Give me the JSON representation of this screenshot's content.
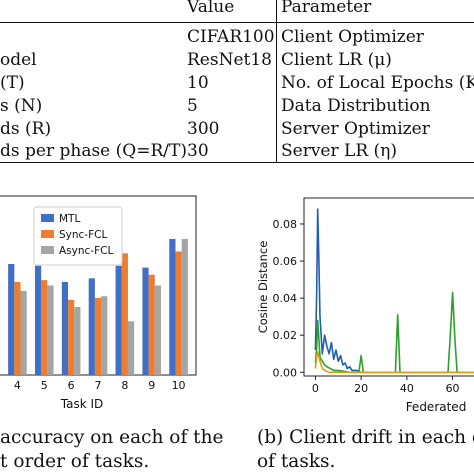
{
  "table": {
    "header": {
      "value": "Value",
      "parameter": "Parameter"
    },
    "rows": [
      {
        "label": "",
        "value": "CIFAR100",
        "parameter": "Client Optimizer"
      },
      {
        "label": "odel",
        "value": "ResNet18",
        "parameter": "Client LR (μ)"
      },
      {
        "label": "(T)",
        "value": "10",
        "parameter": "No. of Local Epochs (K)"
      },
      {
        "label": "s (N)",
        "value": "5",
        "parameter": "Data Distribution"
      },
      {
        "label": "ds (R)",
        "value": "300",
        "parameter": "Server Optimizer"
      },
      {
        "label": "ds per phase (Q=R/T)",
        "value": "30",
        "parameter": "Server LR (η)"
      }
    ]
  },
  "figure_a": {
    "caption_line1": "accuracy on each of the",
    "caption_line2": "t order of tasks.",
    "chart_data": {
      "type": "bar",
      "categories": [
        "4",
        "5",
        "6",
        "7",
        "8",
        "9",
        "10"
      ],
      "xlabel": "Task ID",
      "ylabel": "",
      "ylim": [
        0,
        100
      ],
      "series": [
        {
          "name": "MTL",
          "color": "#3f6fc6",
          "values": [
            62,
            61,
            52,
            54,
            61,
            60,
            76
          ]
        },
        {
          "name": "Sync-FCL",
          "color": "#ed7d31",
          "values": [
            52,
            53,
            42,
            43,
            68,
            56,
            69
          ]
        },
        {
          "name": "Async-FCL",
          "color": "#a5a5a5",
          "values": [
            47,
            50,
            38,
            44,
            30,
            50,
            76
          ]
        }
      ],
      "legend_position": "top-left"
    }
  },
  "figure_b": {
    "caption_line1": "(b) Client drift in each c",
    "caption_line2": "of tasks.",
    "chart_data": {
      "type": "line",
      "ylabel": "Cosine Distance",
      "xlabel": "Federated",
      "xlim": [
        -5,
        72
      ],
      "ylim": [
        -0.002,
        0.094
      ],
      "xticks": [
        "0",
        "20",
        "40",
        "60"
      ],
      "xtick_values": [
        0,
        20,
        40,
        60
      ],
      "yticks": [
        "0.00",
        "0.02",
        "0.04",
        "0.06",
        "0.08"
      ],
      "ytick_values": [
        0,
        0.02,
        0.04,
        0.06,
        0.08
      ],
      "series": [
        {
          "name": "",
          "color": "#1f5fb0",
          "x": [
            0,
            0.5,
            1,
            1.5,
            2,
            3,
            4,
            5,
            6,
            7,
            8,
            9,
            10,
            11,
            12,
            13,
            14,
            15,
            16,
            18,
            20,
            25,
            30,
            40,
            50,
            60,
            70
          ],
          "y": [
            0.012,
            0.04,
            0.088,
            0.06,
            0.03,
            0.01,
            0.02,
            0.014,
            0.01,
            0.016,
            0.007,
            0.012,
            0.006,
            0.009,
            0.004,
            0.005,
            0.002,
            0.003,
            0.001,
            0.001,
            0.0,
            0.0,
            0.0,
            0.0,
            0.0,
            0.0,
            0.0
          ]
        },
        {
          "name": "",
          "color": "#2ca02c",
          "x": [
            0,
            0.5,
            1,
            1.5,
            2,
            3,
            4,
            5,
            8,
            10,
            15,
            19,
            20,
            21,
            25,
            30,
            33,
            35,
            36,
            37,
            38,
            40,
            45,
            50,
            55,
            58,
            59,
            60,
            61,
            62,
            65,
            70
          ],
          "y": [
            0.005,
            0.012,
            0.028,
            0.018,
            0.008,
            0.006,
            0.004,
            0.003,
            0.001,
            0.001,
            0.0,
            0.0,
            0.009,
            0.0,
            0.0,
            0.0,
            0.0,
            0.0,
            0.031,
            0.0,
            0.0,
            0.0,
            0.0,
            0.0,
            0.0,
            0.0,
            0.02,
            0.043,
            0.018,
            0.0,
            0.0,
            0.0
          ]
        },
        {
          "name": "",
          "color": "#d4a017",
          "x": [
            0,
            0.5,
            1,
            2,
            3,
            4,
            6,
            10,
            20,
            70
          ],
          "y": [
            0.002,
            0.008,
            0.011,
            0.006,
            0.002,
            0.001,
            0.0,
            0.0,
            0.0,
            0.0
          ]
        }
      ]
    }
  }
}
